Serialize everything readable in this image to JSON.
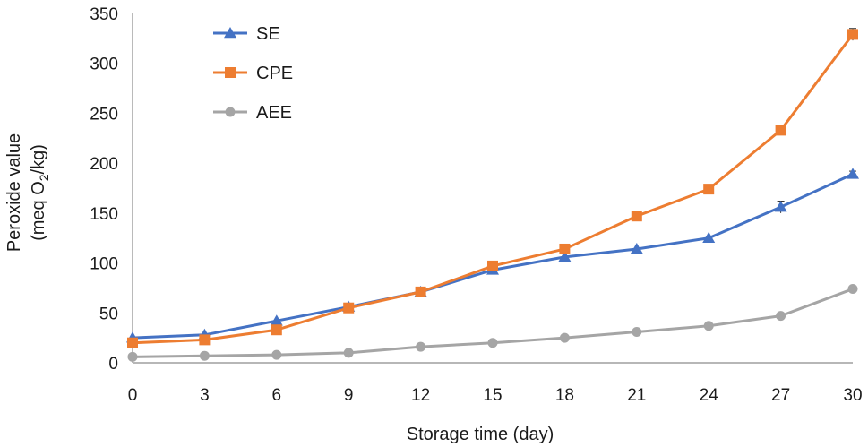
{
  "chart_data": {
    "type": "line",
    "xlabel": "Storage time (day)",
    "ylabel_line1": "Peroxide value",
    "ylabel_line2_prefix": "(meq O",
    "ylabel_line2_sub": "2",
    "ylabel_line2_suffix": "/kg)",
    "x": [
      0,
      3,
      6,
      9,
      12,
      15,
      18,
      21,
      24,
      27,
      30
    ],
    "x_ticks": [
      "0",
      "3",
      "6",
      "9",
      "12",
      "15",
      "18",
      "21",
      "24",
      "27",
      "30"
    ],
    "y_ticks": [
      "0",
      "50",
      "100",
      "150",
      "200",
      "250",
      "300",
      "350"
    ],
    "ylim": [
      0,
      350
    ],
    "grid": false,
    "legend_position": "top-left",
    "series": [
      {
        "name": "SE",
        "marker": "triangle",
        "color": "#4472C4",
        "values": [
          25,
          28,
          42,
          56,
          71,
          93,
          106,
          114,
          125,
          156,
          189
        ],
        "errors": [
          0,
          0,
          0,
          0,
          0,
          0,
          0,
          0,
          0,
          6,
          3
        ]
      },
      {
        "name": "CPE",
        "marker": "square",
        "color": "#ED7D31",
        "values": [
          20,
          23,
          33,
          55,
          71,
          97,
          114,
          147,
          174,
          233,
          329
        ],
        "errors": [
          0,
          0,
          0,
          0,
          0,
          0,
          0,
          0,
          0,
          0,
          6
        ]
      },
      {
        "name": "AEE",
        "marker": "circle",
        "color": "#A5A5A5",
        "values": [
          6,
          7,
          8,
          10,
          16,
          20,
          25,
          31,
          37,
          47,
          74
        ],
        "errors": [
          0,
          0,
          0,
          0,
          0,
          0,
          0,
          0,
          0,
          0,
          0
        ]
      }
    ]
  }
}
